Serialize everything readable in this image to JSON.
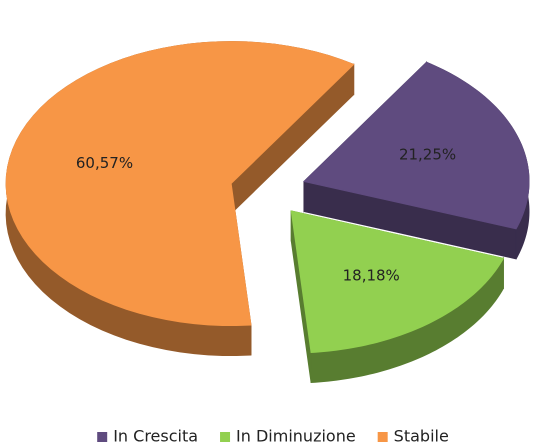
{
  "chart_data": {
    "type": "pie",
    "categories": [
      "In Crescita",
      "In Diminuzione",
      "Stabile"
    ],
    "values": [
      21.25,
      18.18,
      60.57
    ],
    "value_labels": [
      "21,25%",
      "18,18%",
      "60,57%"
    ],
    "colors": [
      "#5f4b7f",
      "#92d050",
      "#f79646"
    ],
    "legend": "bottom"
  }
}
